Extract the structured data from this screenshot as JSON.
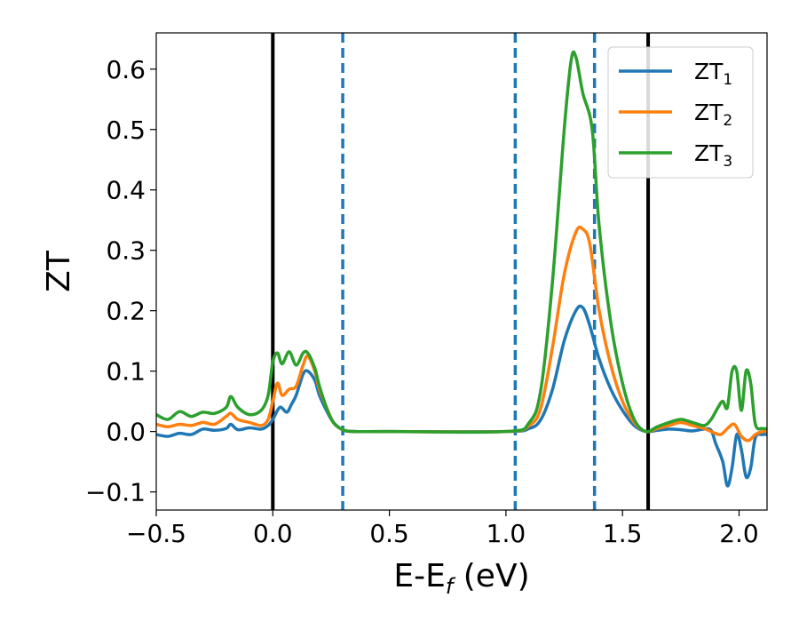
{
  "chart_data": {
    "type": "line",
    "xlabel": "E-E",
    "xlabel_sub": "f",
    "xlabel_unit": " (eV)",
    "ylabel": "ZT",
    "xlim": [
      -0.5,
      2.12
    ],
    "ylim": [
      -0.13,
      0.66
    ],
    "x_ticks": [
      -0.5,
      0.0,
      0.5,
      1.0,
      1.5,
      2.0
    ],
    "x_tick_labels": [
      "−0.5",
      "0.0",
      "0.5",
      "1.0",
      "1.5",
      "2.0"
    ],
    "y_ticks": [
      -0.1,
      0.0,
      0.1,
      0.2,
      0.3,
      0.4,
      0.5,
      0.6
    ],
    "y_tick_labels": [
      "−0.1",
      "0.0",
      "0.1",
      "0.2",
      "0.3",
      "0.4",
      "0.5",
      "0.6"
    ],
    "grid": false,
    "legend_position": "top-right",
    "vlines": [
      {
        "x": 0.0,
        "style": "solid",
        "color": "#000000"
      },
      {
        "x": 1.61,
        "style": "solid",
        "color": "#000000"
      },
      {
        "x": 0.3,
        "style": "dashed",
        "color": "#1f77b4"
      },
      {
        "x": 1.04,
        "style": "dashed",
        "color": "#1f77b4"
      },
      {
        "x": 1.38,
        "style": "dashed",
        "color": "#1f77b4"
      }
    ],
    "series": [
      {
        "name": "ZT",
        "name_sub": "1",
        "color": "#1f77b4",
        "points": [
          [
            -0.5,
            -0.005
          ],
          [
            -0.45,
            -0.008
          ],
          [
            -0.4,
            -0.003
          ],
          [
            -0.35,
            -0.005
          ],
          [
            -0.3,
            0.004
          ],
          [
            -0.25,
            0.002
          ],
          [
            -0.2,
            0.005
          ],
          [
            -0.18,
            0.012
          ],
          [
            -0.15,
            0.003
          ],
          [
            -0.1,
            0.006
          ],
          [
            -0.05,
            0.004
          ],
          [
            -0.02,
            0.01
          ],
          [
            0.0,
            0.02
          ],
          [
            0.03,
            0.04
          ],
          [
            0.06,
            0.032
          ],
          [
            0.08,
            0.045
          ],
          [
            0.1,
            0.06
          ],
          [
            0.13,
            0.095
          ],
          [
            0.15,
            0.1
          ],
          [
            0.18,
            0.085
          ],
          [
            0.2,
            0.06
          ],
          [
            0.23,
            0.035
          ],
          [
            0.26,
            0.015
          ],
          [
            0.3,
            0.003
          ],
          [
            0.35,
            0.0
          ],
          [
            0.5,
            0.0
          ],
          [
            1.0,
            0.0
          ],
          [
            1.1,
            0.005
          ],
          [
            1.15,
            0.02
          ],
          [
            1.2,
            0.07
          ],
          [
            1.25,
            0.15
          ],
          [
            1.3,
            0.2
          ],
          [
            1.33,
            0.205
          ],
          [
            1.36,
            0.175
          ],
          [
            1.4,
            0.12
          ],
          [
            1.45,
            0.07
          ],
          [
            1.5,
            0.035
          ],
          [
            1.55,
            0.01
          ],
          [
            1.6,
            0.0
          ],
          [
            1.65,
            0.002
          ],
          [
            1.7,
            0.004
          ],
          [
            1.75,
            0.003
          ],
          [
            1.8,
            0.001
          ],
          [
            1.85,
            0.004
          ],
          [
            1.88,
            0.002
          ],
          [
            1.9,
            -0.02
          ],
          [
            1.93,
            -0.05
          ],
          [
            1.95,
            -0.09
          ],
          [
            1.97,
            -0.06
          ],
          [
            1.99,
            -0.005
          ],
          [
            2.01,
            -0.03
          ],
          [
            2.03,
            -0.075
          ],
          [
            2.05,
            -0.06
          ],
          [
            2.07,
            -0.01
          ],
          [
            2.1,
            -0.005
          ],
          [
            2.12,
            -0.005
          ]
        ]
      },
      {
        "name": "ZT",
        "name_sub": "2",
        "color": "#ff7f0e",
        "points": [
          [
            -0.5,
            0.012
          ],
          [
            -0.45,
            0.008
          ],
          [
            -0.4,
            0.012
          ],
          [
            -0.35,
            0.01
          ],
          [
            -0.3,
            0.015
          ],
          [
            -0.25,
            0.012
          ],
          [
            -0.2,
            0.025
          ],
          [
            -0.18,
            0.03
          ],
          [
            -0.15,
            0.02
          ],
          [
            -0.1,
            0.015
          ],
          [
            -0.05,
            0.01
          ],
          [
            -0.02,
            0.02
          ],
          [
            0.0,
            0.05
          ],
          [
            0.02,
            0.08
          ],
          [
            0.04,
            0.06
          ],
          [
            0.07,
            0.07
          ],
          [
            0.1,
            0.075
          ],
          [
            0.13,
            0.11
          ],
          [
            0.15,
            0.125
          ],
          [
            0.18,
            0.1
          ],
          [
            0.2,
            0.07
          ],
          [
            0.23,
            0.04
          ],
          [
            0.26,
            0.015
          ],
          [
            0.3,
            0.003
          ],
          [
            0.35,
            0.0
          ],
          [
            0.5,
            0.0
          ],
          [
            1.0,
            0.0
          ],
          [
            1.1,
            0.01
          ],
          [
            1.15,
            0.04
          ],
          [
            1.2,
            0.14
          ],
          [
            1.25,
            0.26
          ],
          [
            1.3,
            0.33
          ],
          [
            1.33,
            0.335
          ],
          [
            1.36,
            0.31
          ],
          [
            1.4,
            0.2
          ],
          [
            1.45,
            0.11
          ],
          [
            1.5,
            0.05
          ],
          [
            1.55,
            0.015
          ],
          [
            1.6,
            0.0
          ],
          [
            1.65,
            0.005
          ],
          [
            1.7,
            0.01
          ],
          [
            1.75,
            0.015
          ],
          [
            1.8,
            0.01
          ],
          [
            1.85,
            0.005
          ],
          [
            1.88,
            0.0
          ],
          [
            1.92,
            -0.005
          ],
          [
            1.95,
            0.005
          ],
          [
            1.98,
            0.012
          ],
          [
            2.01,
            -0.008
          ],
          [
            2.04,
            -0.015
          ],
          [
            2.07,
            -0.005
          ],
          [
            2.1,
            0.0
          ],
          [
            2.12,
            0.0
          ]
        ]
      },
      {
        "name": "ZT",
        "name_sub": "3",
        "color": "#2ca02c",
        "points": [
          [
            -0.5,
            0.028
          ],
          [
            -0.45,
            0.02
          ],
          [
            -0.4,
            0.033
          ],
          [
            -0.35,
            0.025
          ],
          [
            -0.3,
            0.032
          ],
          [
            -0.25,
            0.03
          ],
          [
            -0.2,
            0.04
          ],
          [
            -0.18,
            0.058
          ],
          [
            -0.15,
            0.04
          ],
          [
            -0.1,
            0.028
          ],
          [
            -0.05,
            0.035
          ],
          [
            -0.02,
            0.06
          ],
          [
            0.0,
            0.115
          ],
          [
            0.02,
            0.13
          ],
          [
            0.04,
            0.112
          ],
          [
            0.07,
            0.132
          ],
          [
            0.1,
            0.11
          ],
          [
            0.13,
            0.13
          ],
          [
            0.15,
            0.13
          ],
          [
            0.18,
            0.105
          ],
          [
            0.2,
            0.075
          ],
          [
            0.23,
            0.04
          ],
          [
            0.26,
            0.015
          ],
          [
            0.3,
            0.003
          ],
          [
            0.35,
            0.0
          ],
          [
            0.5,
            0.0
          ],
          [
            1.0,
            0.0
          ],
          [
            1.1,
            0.015
          ],
          [
            1.15,
            0.07
          ],
          [
            1.2,
            0.25
          ],
          [
            1.25,
            0.5
          ],
          [
            1.28,
            0.615
          ],
          [
            1.3,
            0.62
          ],
          [
            1.33,
            0.56
          ],
          [
            1.37,
            0.5
          ],
          [
            1.4,
            0.34
          ],
          [
            1.45,
            0.18
          ],
          [
            1.5,
            0.08
          ],
          [
            1.55,
            0.02
          ],
          [
            1.6,
            0.0
          ],
          [
            1.65,
            0.008
          ],
          [
            1.7,
            0.015
          ],
          [
            1.75,
            0.02
          ],
          [
            1.8,
            0.015
          ],
          [
            1.85,
            0.01
          ],
          [
            1.88,
            0.02
          ],
          [
            1.91,
            0.04
          ],
          [
            1.93,
            0.05
          ],
          [
            1.95,
            0.04
          ],
          [
            1.97,
            0.1
          ],
          [
            1.99,
            0.1
          ],
          [
            2.01,
            0.035
          ],
          [
            2.03,
            0.1
          ],
          [
            2.05,
            0.08
          ],
          [
            2.07,
            0.012
          ],
          [
            2.1,
            0.005
          ],
          [
            2.12,
            0.005
          ]
        ]
      }
    ]
  }
}
